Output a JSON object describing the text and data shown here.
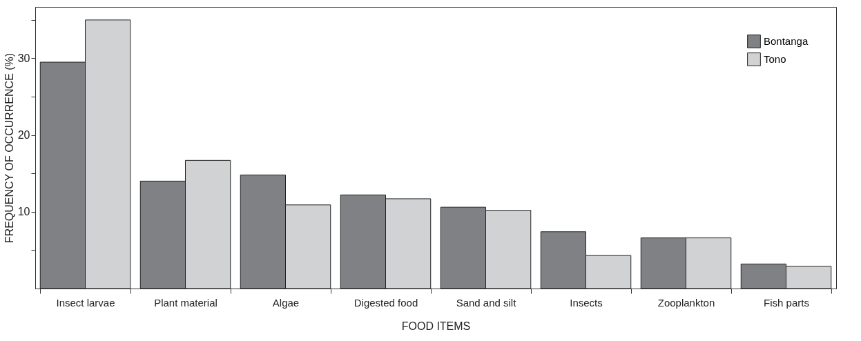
{
  "chart_data": {
    "type": "bar",
    "xlabel": "FOOD ITEMS",
    "ylabel": "FREQUENCY OF OCCURRENCE (%)",
    "categories": [
      "Insect larvae",
      "Plant material",
      "Algae",
      "Digested food",
      "Sand and silt",
      "Insects",
      "Zooplankton",
      "Fish parts"
    ],
    "series": [
      {
        "name": "Bontanga",
        "color": "#808184",
        "values": [
          29.5,
          14.0,
          14.8,
          12.2,
          10.6,
          7.4,
          6.6,
          3.2
        ]
      },
      {
        "name": "Tono",
        "color": "#d1d2d4",
        "values": [
          35.0,
          16.7,
          10.9,
          11.7,
          10.2,
          4.3,
          6.6,
          2.9
        ]
      }
    ],
    "ylim": [
      0,
      36.7
    ],
    "yticks": [
      {
        "value": 5,
        "label": null
      },
      10,
      {
        "value": 15,
        "label": null
      },
      20,
      {
        "value": 25,
        "label": null
      },
      30,
      {
        "value": 35,
        "label": null
      }
    ],
    "grid": false,
    "legend": "top right"
  }
}
